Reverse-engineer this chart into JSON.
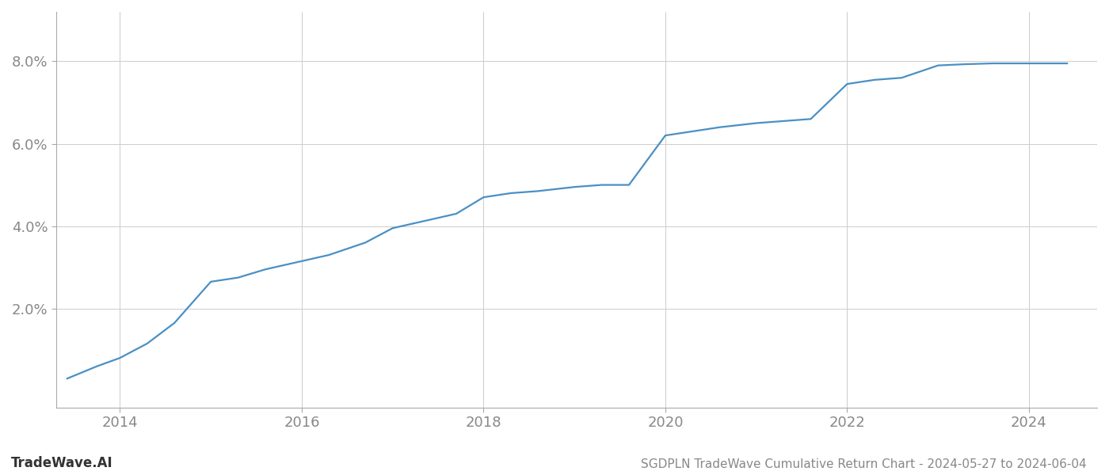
{
  "title": "SGDPLN TradeWave Cumulative Return Chart - 2024-05-27 to 2024-06-04",
  "watermark": "TradeWave.AI",
  "line_color": "#4a90c4",
  "background_color": "#ffffff",
  "grid_color": "#cccccc",
  "x_years": [
    2013.42,
    2013.75,
    2014.0,
    2014.3,
    2014.6,
    2015.0,
    2015.3,
    2015.6,
    2016.0,
    2016.3,
    2016.7,
    2017.0,
    2017.3,
    2017.7,
    2018.0,
    2018.3,
    2018.6,
    2019.0,
    2019.3,
    2019.6,
    2020.0,
    2020.3,
    2020.6,
    2021.0,
    2021.3,
    2021.6,
    2022.0,
    2022.3,
    2022.6,
    2023.0,
    2023.3,
    2023.6,
    2024.0,
    2024.42
  ],
  "y_values": [
    0.003,
    0.006,
    0.008,
    0.0115,
    0.0165,
    0.0265,
    0.0275,
    0.0295,
    0.0315,
    0.033,
    0.036,
    0.0395,
    0.041,
    0.043,
    0.047,
    0.048,
    0.0485,
    0.0495,
    0.05,
    0.05,
    0.062,
    0.063,
    0.064,
    0.065,
    0.0655,
    0.066,
    0.0745,
    0.0755,
    0.076,
    0.079,
    0.0793,
    0.0795,
    0.0795,
    0.0795
  ],
  "xlim": [
    2013.3,
    2024.75
  ],
  "ylim": [
    -0.004,
    0.092
  ],
  "yticks": [
    0.02,
    0.04,
    0.06,
    0.08
  ],
  "xticks": [
    2014,
    2016,
    2018,
    2020,
    2022,
    2024
  ],
  "tick_color": "#888888",
  "tick_fontsize": 13,
  "title_fontsize": 11,
  "watermark_fontsize": 12,
  "line_width": 1.6
}
